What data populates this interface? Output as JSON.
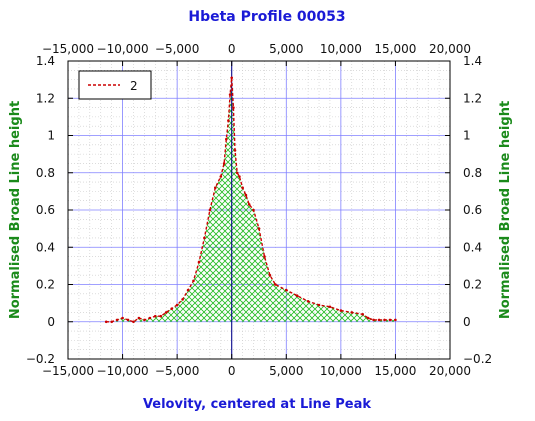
{
  "chart_data": {
    "type": "line",
    "title": "Hbeta Profile 00053",
    "xlabel": "Velovity, centered at Line Peak",
    "ylabel_left": "Normalised Broad Line height",
    "ylabel_right": "Normalised Broad Line height",
    "xlim": [
      -15000,
      20000
    ],
    "ylim": [
      -0.2,
      1.4
    ],
    "x_ticks": [
      -15000,
      -10000,
      -5000,
      0,
      5000,
      10000,
      15000,
      20000
    ],
    "x_tick_labels": [
      "−15,000",
      "−10,000",
      "−5,000",
      "0",
      "5,000",
      "10,000",
      "15,000",
      "20,000"
    ],
    "y_ticks": [
      -0.2,
      0,
      0.2,
      0.4,
      0.6,
      0.8,
      1,
      1.2,
      1.4
    ],
    "y_tick_labels": [
      "−0.2",
      "0",
      "0.2",
      "0.4",
      "0.6",
      "0.8",
      "1",
      "1.2",
      "1.4"
    ],
    "grid": true,
    "legend_position": "top-left",
    "series": [
      {
        "name": "2",
        "color": "#cc0000",
        "fill_color": "#22bb22",
        "fill": "crosshatch to zero",
        "x": [
          -11500,
          -11000,
          -10500,
          -10000,
          -9500,
          -9000,
          -8500,
          -8000,
          -7500,
          -7000,
          -6500,
          -6000,
          -5500,
          -5000,
          -4500,
          -4000,
          -3500,
          -3000,
          -2500,
          -2000,
          -1500,
          -1000,
          -700,
          -500,
          -300,
          -150,
          0,
          150,
          300,
          500,
          700,
          1000,
          1300,
          1600,
          2000,
          2500,
          3000,
          3500,
          4000,
          5000,
          6000,
          7000,
          8000,
          9000,
          10000,
          11000,
          12000,
          12500,
          13000,
          13500,
          14000,
          14500,
          15000
        ],
        "y": [
          0.0,
          0.0,
          0.01,
          0.02,
          0.01,
          0.0,
          0.02,
          0.01,
          0.02,
          0.03,
          0.03,
          0.05,
          0.07,
          0.09,
          0.12,
          0.17,
          0.22,
          0.32,
          0.45,
          0.6,
          0.72,
          0.78,
          0.85,
          0.98,
          1.08,
          1.22,
          1.31,
          1.15,
          0.92,
          0.8,
          0.78,
          0.72,
          0.68,
          0.63,
          0.6,
          0.5,
          0.35,
          0.25,
          0.2,
          0.17,
          0.14,
          0.11,
          0.09,
          0.08,
          0.06,
          0.05,
          0.04,
          0.02,
          0.01,
          0.01,
          0.01,
          0.01,
          0.01
        ]
      }
    ]
  }
}
